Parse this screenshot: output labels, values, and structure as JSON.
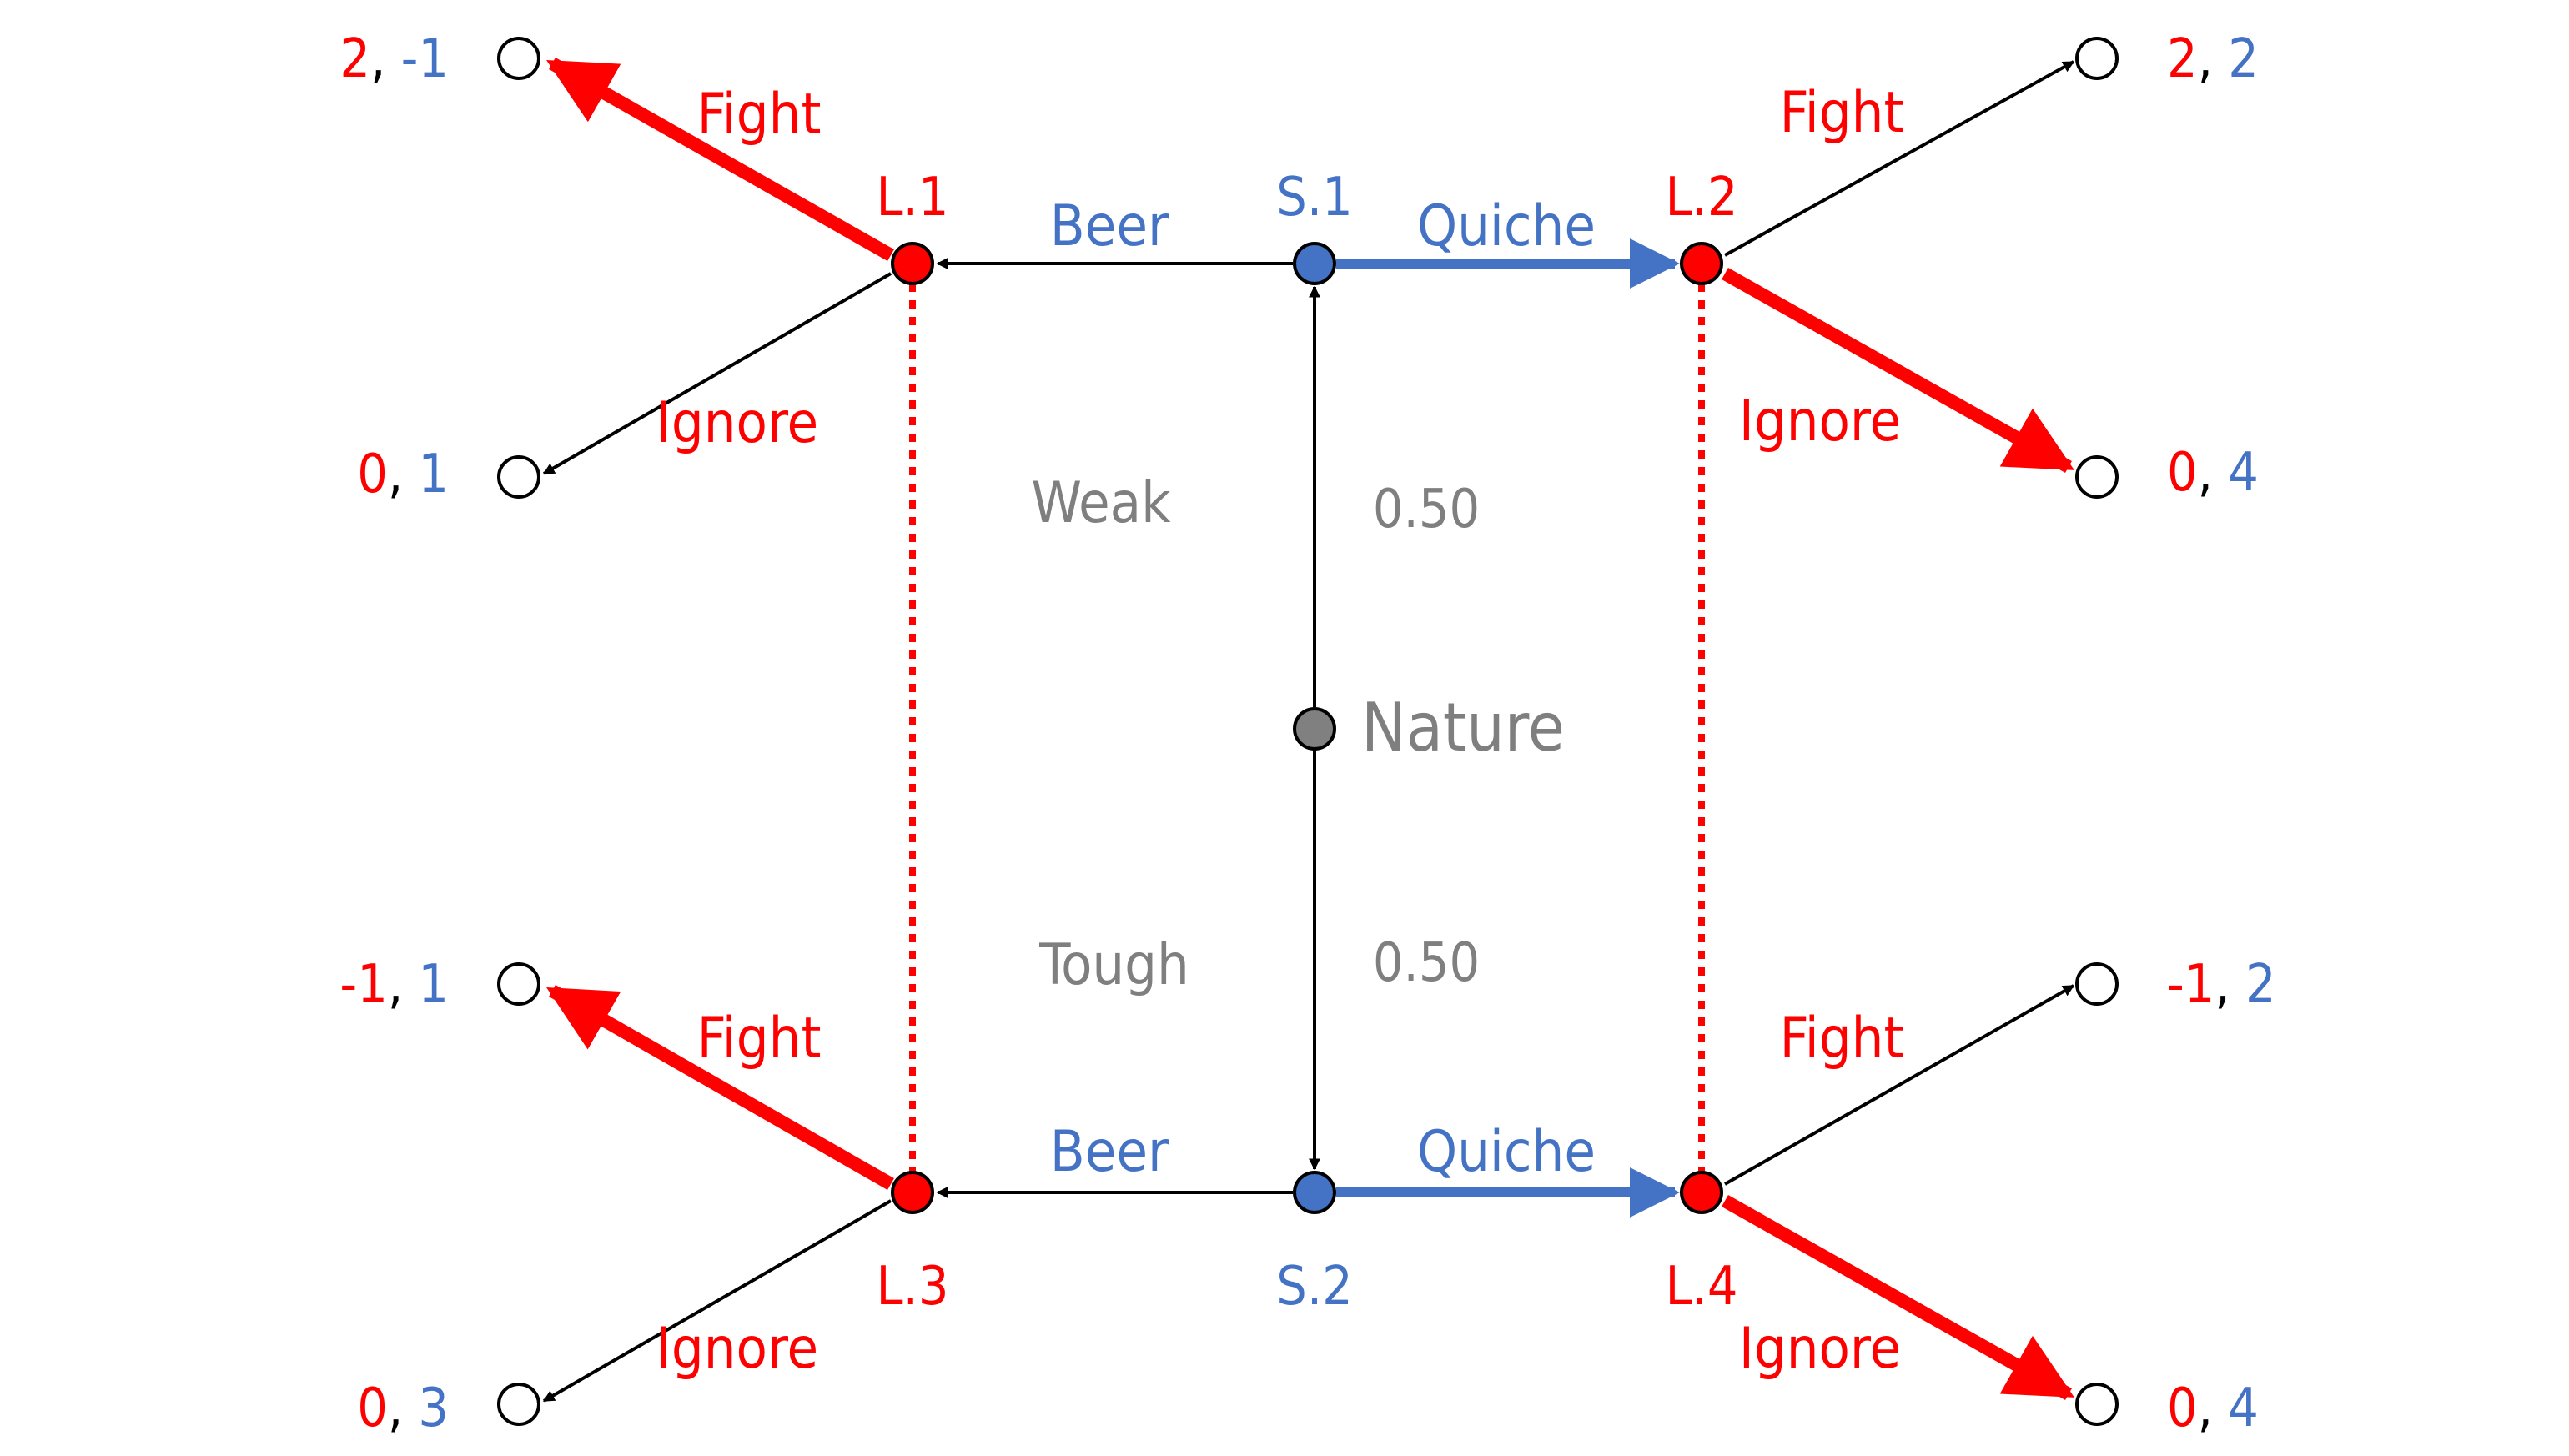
{
  "colors": {
    "receiver": "#ff0000",
    "sender": "#4472c4",
    "nature": "#808080",
    "edge": "#000000",
    "terminal_fill": "#ffffff"
  },
  "nature": {
    "label": "Nature"
  },
  "types": {
    "weak": {
      "label": "Weak",
      "prob": "0.50"
    },
    "tough": {
      "label": "Tough",
      "prob": "0.50"
    }
  },
  "senders": {
    "s1": {
      "label": "S.1"
    },
    "s2": {
      "label": "S.2"
    }
  },
  "receivers": {
    "l1": {
      "label": "L.1"
    },
    "l2": {
      "label": "L.2"
    },
    "l3": {
      "label": "L.3"
    },
    "l4": {
      "label": "L.4"
    }
  },
  "signals": {
    "beer_top": "Beer",
    "quiche_top": "Quiche",
    "beer_bottom": "Beer",
    "quiche_bottom": "Quiche"
  },
  "responses": {
    "l1_fight": "Fight",
    "l1_ignore": "Ignore",
    "l2_fight": "Fight",
    "l2_ignore": "Ignore",
    "l3_fight": "Fight",
    "l3_ignore": "Ignore",
    "l4_fight": "Fight",
    "l4_ignore": "Ignore"
  },
  "payoffs": {
    "l1_fight": {
      "receiver": "2",
      "sender": "-1"
    },
    "l1_ignore": {
      "receiver": "0",
      "sender": "1"
    },
    "l2_fight": {
      "receiver": "2",
      "sender": "2"
    },
    "l2_ignore": {
      "receiver": "0",
      "sender": "4"
    },
    "l3_fight": {
      "receiver": "-1",
      "sender": "1"
    },
    "l3_ignore": {
      "receiver": "0",
      "sender": "3"
    },
    "l4_fight": {
      "receiver": "-1",
      "sender": "2"
    },
    "l4_ignore": {
      "receiver": "0",
      "sender": "4"
    },
    "separator": ", "
  }
}
